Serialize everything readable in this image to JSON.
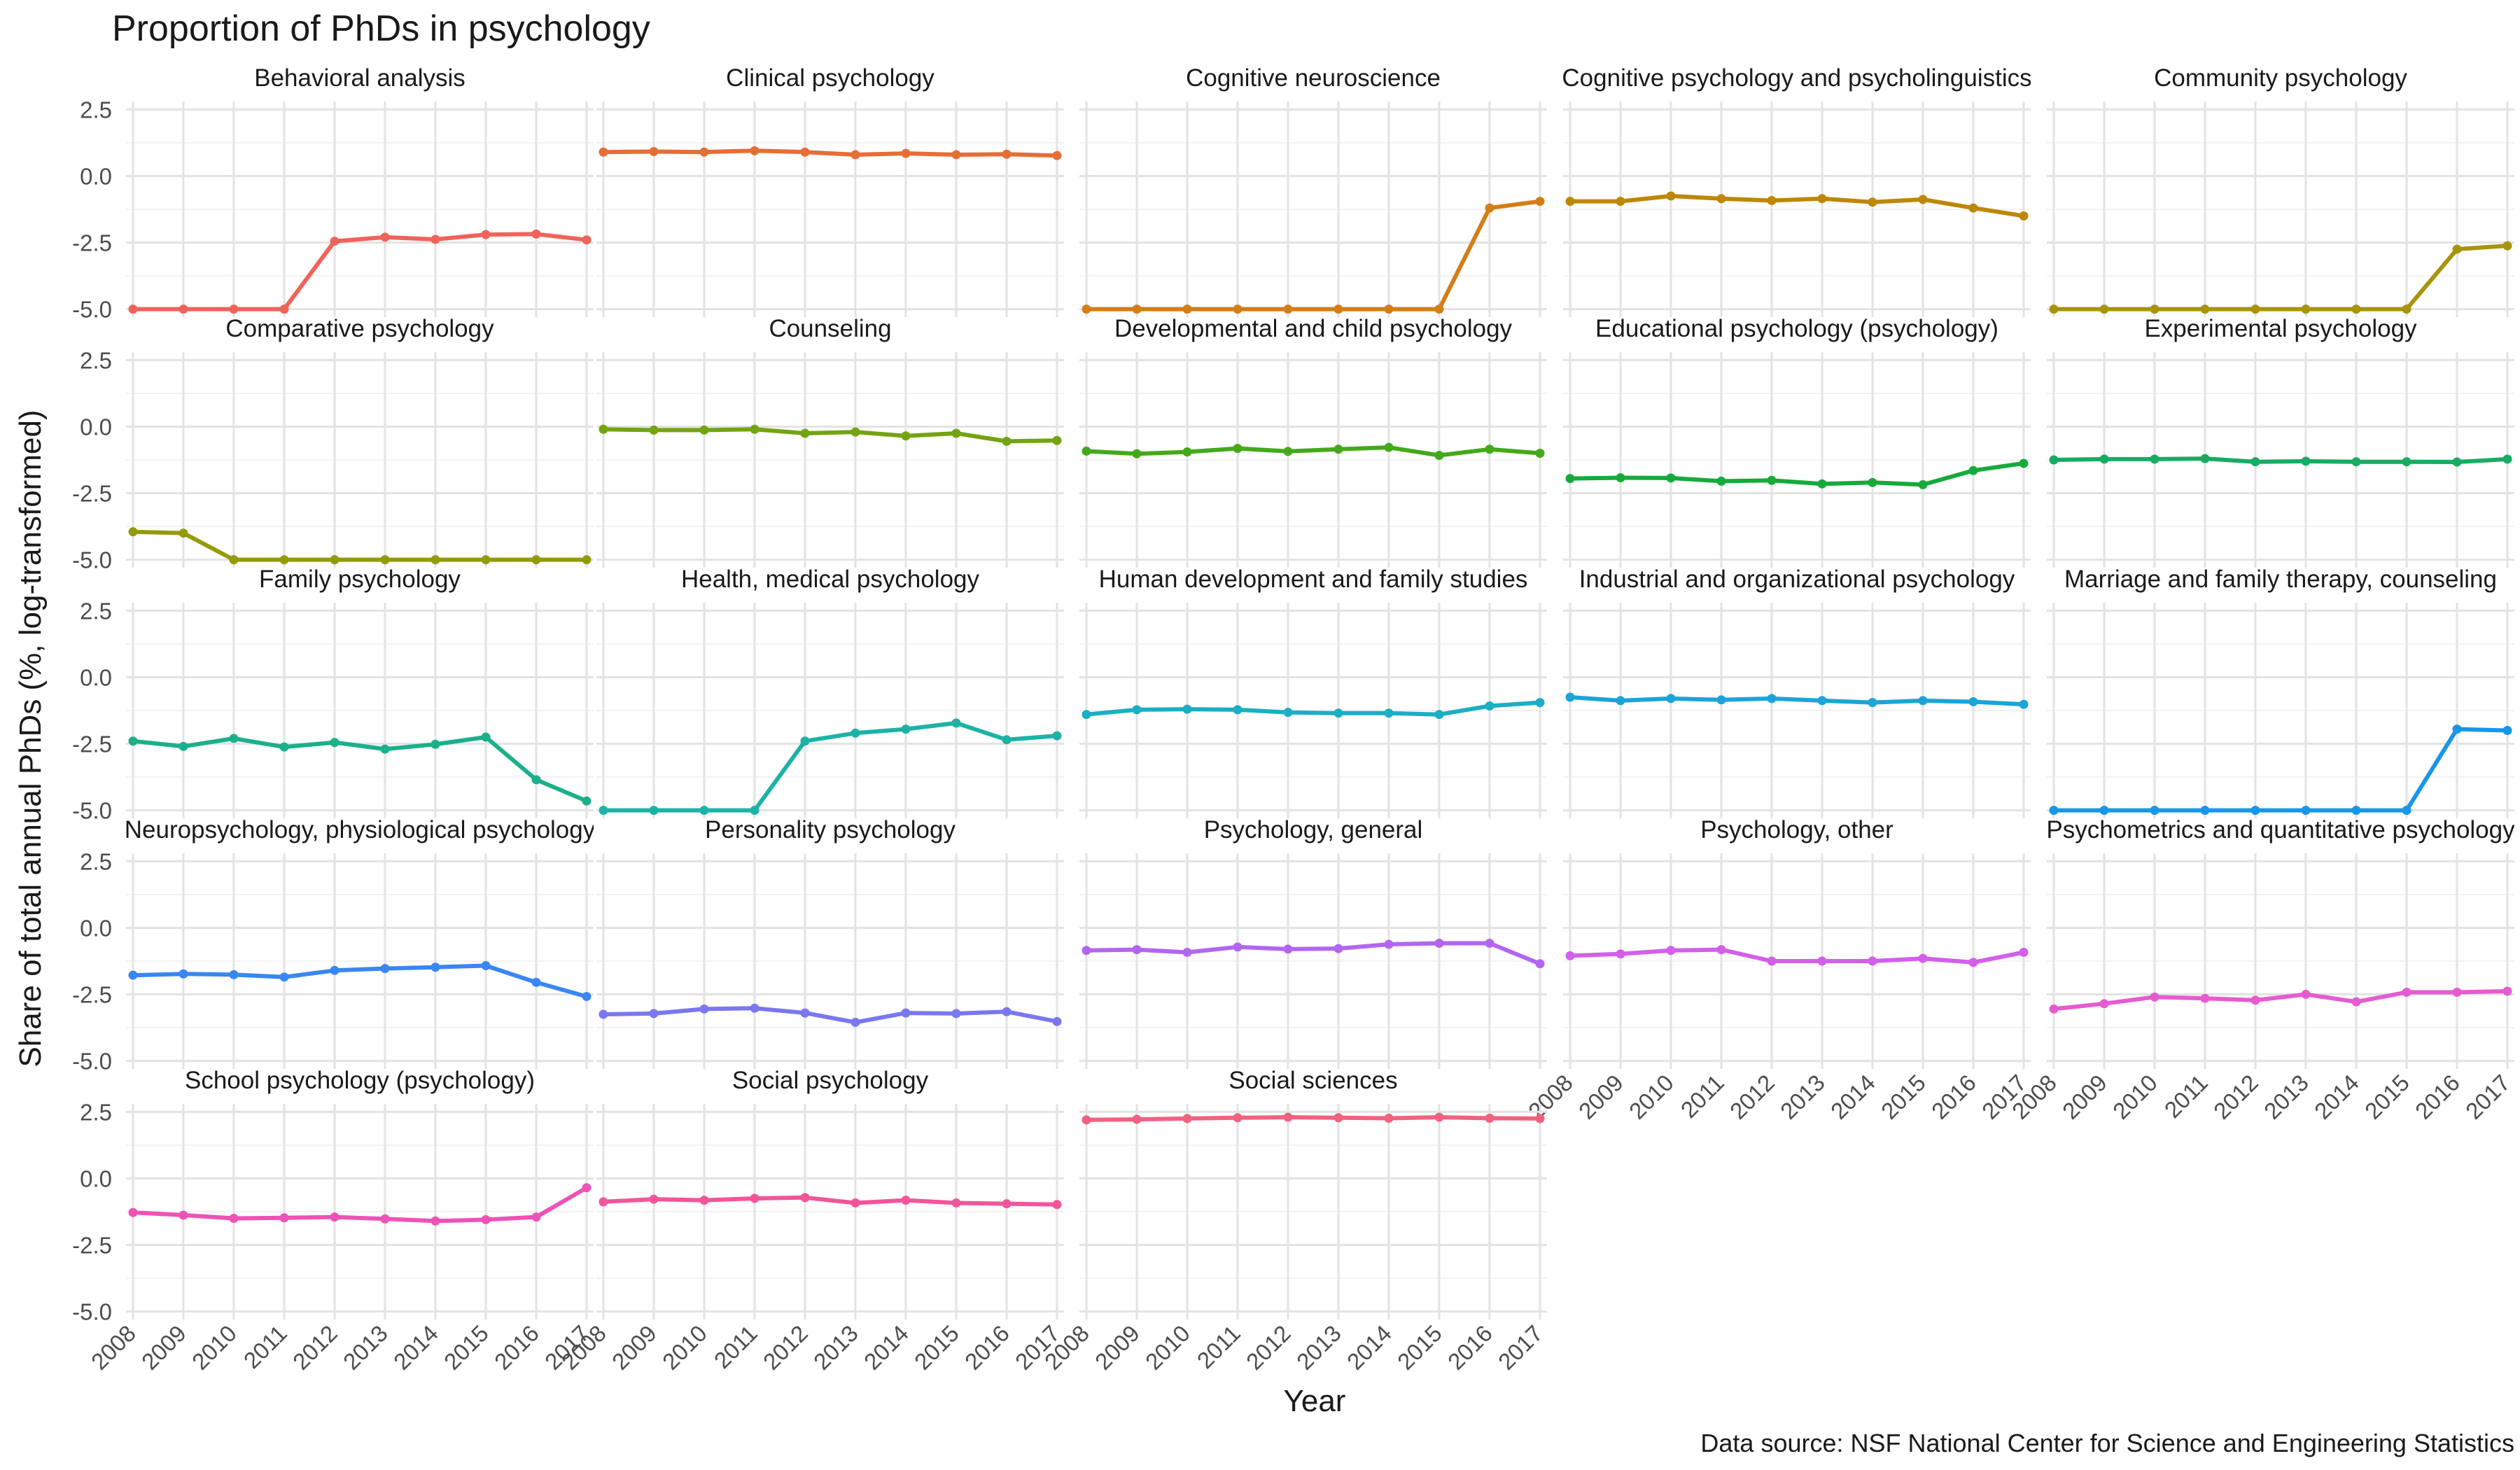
{
  "chart_data": {
    "type": "line",
    "title": "Proportion of PhDs in psychology",
    "xlabel": "Year",
    "ylabel": "Share of total annual PhDs (%, log-transformed)",
    "caption": "Data source: NSF National Center for Science and Engineering Statistics",
    "x": [
      2008,
      2009,
      2010,
      2011,
      2012,
      2013,
      2014,
      2015,
      2016,
      2017
    ],
    "x_tick_labels": [
      "2008",
      "2009",
      "2010",
      "2011",
      "2012",
      "2013",
      "2014",
      "2015",
      "2016",
      "2017"
    ],
    "y_ticks": [
      2.5,
      0.0,
      -2.5,
      -5.0
    ],
    "y_tick_labels": [
      "2.5",
      "0.0",
      "-2.5",
      "-5.0"
    ],
    "ylim": [
      -5.3,
      2.8
    ],
    "grid": true,
    "layout": "facet grid, 5 columns",
    "panels": [
      {
        "title": "Behavioral analysis",
        "color": "#F0635A",
        "values": [
          -5,
          -5,
          -5,
          -5,
          -2.45,
          -2.3,
          -2.38,
          -2.2,
          -2.18,
          -2.4
        ]
      },
      {
        "title": "Clinical psychology",
        "color": "#E56E36",
        "values": [
          0.9,
          0.92,
          0.9,
          0.95,
          0.9,
          0.8,
          0.85,
          0.8,
          0.82,
          0.77
        ]
      },
      {
        "title": "Cognitive neuroscience",
        "color": "#D37E17",
        "values": [
          -5,
          -5,
          -5,
          -5,
          -5,
          -5,
          -5,
          -5,
          -1.2,
          -0.95
        ]
      },
      {
        "title": "Cognitive psychology and psycholinguistics",
        "color": "#BE8707",
        "values": [
          -0.95,
          -0.95,
          -0.75,
          -0.85,
          -0.92,
          -0.85,
          -0.98,
          -0.88,
          -1.2,
          -1.5
        ]
      },
      {
        "title": "Community psychology",
        "color": "#A8940C",
        "values": [
          -5,
          -5,
          -5,
          -5,
          -5,
          -5,
          -5,
          -5,
          -2.75,
          -2.62
        ]
      },
      {
        "title": "Comparative psychology",
        "color": "#939B0A",
        "values": [
          -3.95,
          -4,
          -5,
          -5,
          -5,
          -5,
          -5,
          -5,
          -5,
          -5
        ]
      },
      {
        "title": "Counseling",
        "color": "#74A410",
        "values": [
          -0.1,
          -0.13,
          -0.13,
          -0.1,
          -0.25,
          -0.2,
          -0.35,
          -0.25,
          -0.55,
          -0.52
        ]
      },
      {
        "title": "Developmental and child psychology",
        "color": "#44A91A",
        "values": [
          -0.92,
          -1.02,
          -0.95,
          -0.82,
          -0.93,
          -0.85,
          -0.78,
          -1.08,
          -0.85,
          -1.0
        ]
      },
      {
        "title": "Educational psychology (psychology)",
        "color": "#16AA3B",
        "values": [
          -1.95,
          -1.92,
          -1.93,
          -2.05,
          -2.02,
          -2.15,
          -2.1,
          -2.18,
          -1.65,
          -1.38
        ]
      },
      {
        "title": "Experimental psychology",
        "color": "#18AB64",
        "values": [
          -1.25,
          -1.22,
          -1.22,
          -1.2,
          -1.32,
          -1.3,
          -1.32,
          -1.32,
          -1.33,
          -1.22
        ]
      },
      {
        "title": "Family psychology",
        "color": "#1CB08A",
        "values": [
          -2.4,
          -2.6,
          -2.3,
          -2.62,
          -2.45,
          -2.7,
          -2.52,
          -2.25,
          -3.85,
          -4.65
        ]
      },
      {
        "title": "Health, medical psychology",
        "color": "#1CB3A6",
        "values": [
          -5,
          -5,
          -5,
          -5,
          -2.4,
          -2.1,
          -1.95,
          -1.72,
          -2.35,
          -2.2
        ]
      },
      {
        "title": "Human development and family studies",
        "color": "#1AAFC3",
        "values": [
          -1.4,
          -1.22,
          -1.2,
          -1.22,
          -1.32,
          -1.35,
          -1.35,
          -1.4,
          -1.08,
          -0.95
        ]
      },
      {
        "title": "Industrial and organizational psychology",
        "color": "#1CA4D8",
        "values": [
          -0.75,
          -0.88,
          -0.8,
          -0.85,
          -0.8,
          -0.88,
          -0.95,
          -0.88,
          -0.92,
          -1.02
        ]
      },
      {
        "title": "Marriage and family therapy, counseling",
        "color": "#1896E8",
        "values": [
          -5,
          -5,
          -5,
          -5,
          -5,
          -5,
          -5,
          -5,
          -1.95,
          -2.0
        ]
      },
      {
        "title": "Neuropsychology, physiological psychology",
        "color": "#3A86F2",
        "values": [
          -1.78,
          -1.73,
          -1.76,
          -1.85,
          -1.6,
          -1.53,
          -1.48,
          -1.42,
          -2.05,
          -2.58
        ]
      },
      {
        "title": "Personality psychology",
        "color": "#7A77F0",
        "values": [
          -3.25,
          -3.22,
          -3.05,
          -3.02,
          -3.2,
          -3.55,
          -3.2,
          -3.22,
          -3.15,
          -3.52
        ]
      },
      {
        "title": "Psychology, general",
        "color": "#B266F0",
        "values": [
          -0.85,
          -0.82,
          -0.92,
          -0.72,
          -0.8,
          -0.78,
          -0.62,
          -0.58,
          -0.58,
          -1.35
        ]
      },
      {
        "title": "Psychology, other",
        "color": "#D35FEA",
        "values": [
          -1.05,
          -0.98,
          -0.85,
          -0.82,
          -1.25,
          -1.25,
          -1.25,
          -1.15,
          -1.3,
          -0.92
        ]
      },
      {
        "title": "Psychometrics and quantitative psychology",
        "color": "#E55CD1",
        "values": [
          -3.05,
          -2.85,
          -2.6,
          -2.65,
          -2.72,
          -2.5,
          -2.78,
          -2.42,
          -2.42,
          -2.38
        ]
      },
      {
        "title": "School psychology (psychology)",
        "color": "#EE52B6",
        "values": [
          -1.28,
          -1.38,
          -1.5,
          -1.48,
          -1.45,
          -1.52,
          -1.6,
          -1.55,
          -1.45,
          -0.35
        ]
      },
      {
        "title": "Social psychology",
        "color": "#F2559A",
        "values": [
          -0.88,
          -0.78,
          -0.82,
          -0.75,
          -0.72,
          -0.92,
          -0.82,
          -0.92,
          -0.95,
          -0.98
        ]
      },
      {
        "title": "Social sciences",
        "color": "#F0627E",
        "values": [
          2.2,
          2.22,
          2.25,
          2.28,
          2.3,
          2.28,
          2.26,
          2.3,
          2.26,
          2.25
        ]
      }
    ]
  }
}
